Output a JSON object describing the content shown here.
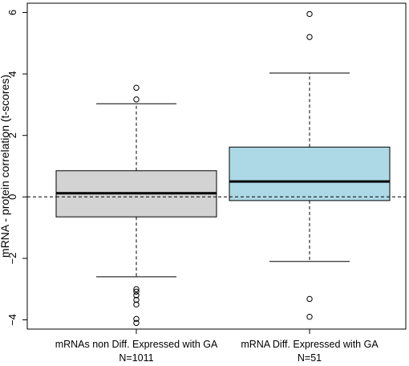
{
  "chart_data": {
    "type": "boxplot",
    "title": "",
    "xlabel": "",
    "ylabel": "mRNA - protein correlation (t-scores)",
    "ylim": [
      -4.3,
      6.3
    ],
    "yticks": [
      -4,
      -2,
      0,
      2,
      4,
      6
    ],
    "reference_line": {
      "y": 0,
      "style": "dashed"
    },
    "groups": [
      {
        "label": "mRNAs non Diff. Expressed with GA",
        "n_label": "N=1011",
        "color": "#d3d3d3",
        "whisker_low": -2.6,
        "q1": -0.65,
        "median": 0.12,
        "q3": 0.85,
        "whisker_high": 3.03,
        "outliers": [
          3.55,
          3.17,
          -3.0,
          -3.08,
          -3.2,
          -3.35,
          -3.5,
          -3.97,
          -4.1
        ]
      },
      {
        "label": "mRNA Diff. Expressed with GA",
        "n_label": "N=51",
        "color": "#add8e6",
        "whisker_low": -2.1,
        "q1": -0.12,
        "median": 0.5,
        "q3": 1.62,
        "whisker_high": 4.03,
        "outliers": [
          5.95,
          5.2,
          -3.32,
          -3.9
        ]
      }
    ]
  }
}
